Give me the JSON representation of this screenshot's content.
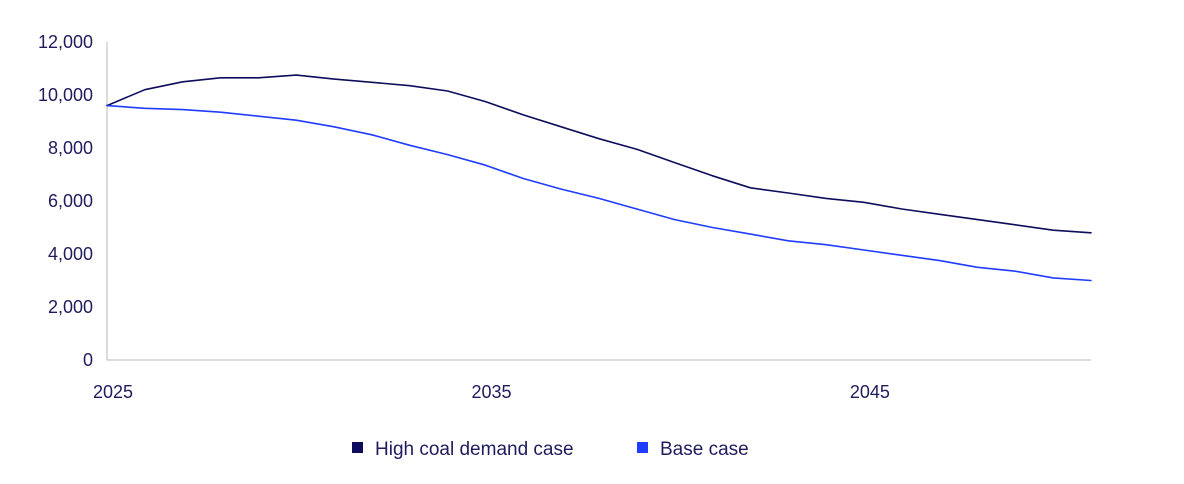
{
  "chart_data": {
    "type": "line",
    "title": "",
    "xlabel": "",
    "ylabel": "",
    "xlim": [
      2025,
      2051
    ],
    "ylim": [
      0,
      12000
    ],
    "x_ticks": [
      2025,
      2035,
      2045
    ],
    "x_tick_labels": [
      "2025",
      "2035",
      "2045"
    ],
    "y_ticks": [
      0,
      2000,
      4000,
      6000,
      8000,
      10000,
      12000
    ],
    "y_tick_labels": [
      "0",
      "2,000",
      "4,000",
      "6,000",
      "8,000",
      "10,000",
      "12,000"
    ],
    "grid": false,
    "legend_position": "bottom",
    "x": [
      2025,
      2026,
      2027,
      2028,
      2029,
      2030,
      2031,
      2032,
      2033,
      2034,
      2035,
      2036,
      2037,
      2038,
      2039,
      2040,
      2041,
      2042,
      2043,
      2044,
      2045,
      2046,
      2047,
      2048,
      2049,
      2050,
      2051
    ],
    "series": [
      {
        "name": "High coal demand case",
        "color": "#0d0d5c",
        "values": [
          9600,
          10200,
          10500,
          10650,
          10650,
          10750,
          10600,
          10480,
          10350,
          10150,
          9750,
          9250,
          8800,
          8350,
          7950,
          7450,
          6950,
          6500,
          6300,
          6100,
          5950,
          5700,
          5500,
          5300,
          5100,
          4900,
          4800
        ]
      },
      {
        "name": "Base case",
        "color": "#1f3cff",
        "values": [
          9600,
          9500,
          9450,
          9350,
          9200,
          9050,
          8800,
          8500,
          8100,
          7750,
          7350,
          6850,
          6450,
          6100,
          5700,
          5300,
          5000,
          4750,
          4500,
          4350,
          4150,
          3950,
          3750,
          3500,
          3350,
          3100,
          3000
        ]
      }
    ]
  }
}
